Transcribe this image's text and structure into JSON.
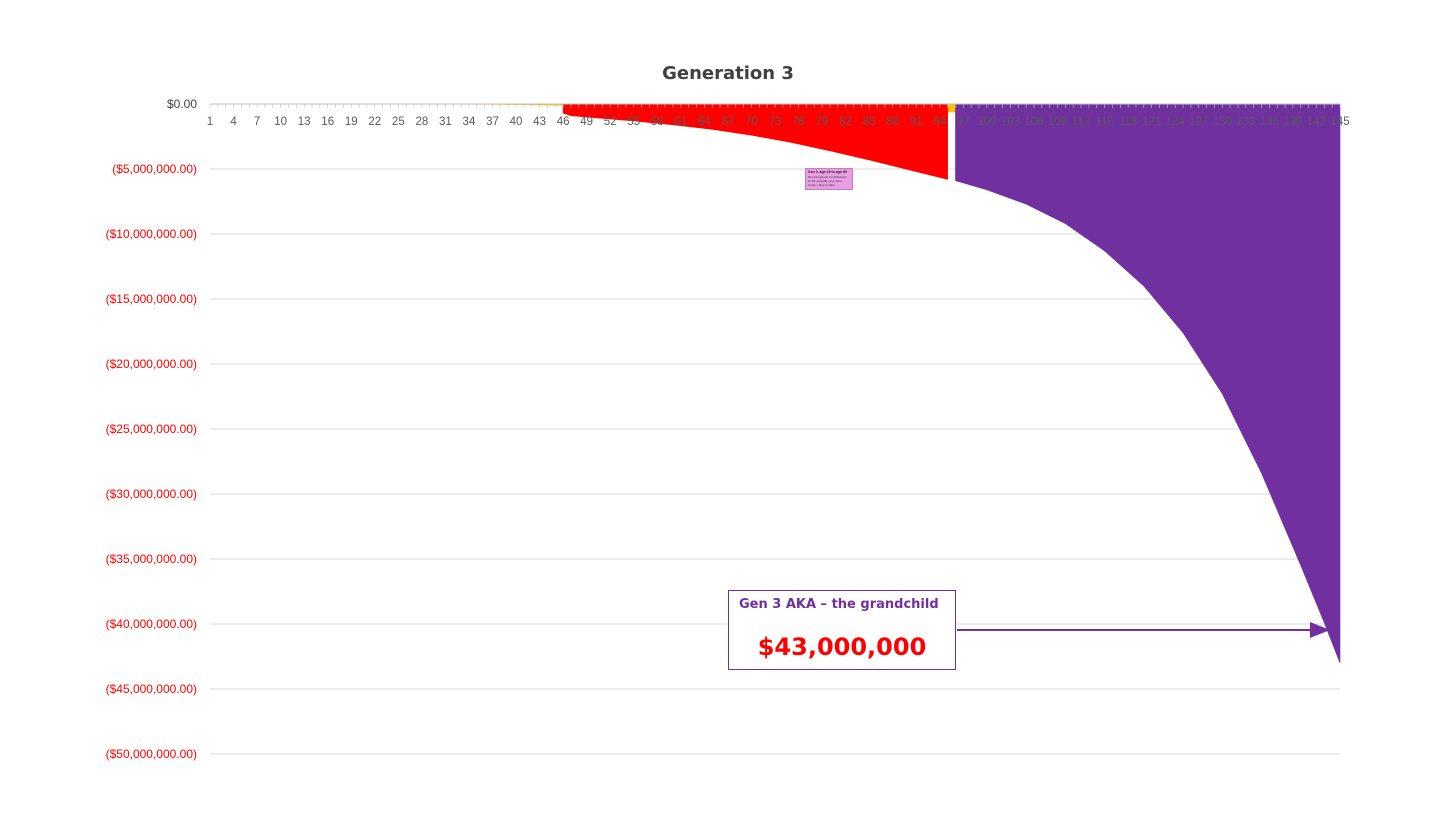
{
  "chart_data": {
    "type": "area",
    "title": "Generation 3",
    "xlabel": "",
    "ylabel": "",
    "x_range": [
      1,
      145
    ],
    "x_tick_labels": [
      "1",
      "4",
      "7",
      "10",
      "13",
      "16",
      "19",
      "22",
      "25",
      "28",
      "31",
      "34",
      "37",
      "40",
      "43",
      "46",
      "49",
      "52",
      "55",
      "58",
      "61",
      "64",
      "67",
      "70",
      "73",
      "76",
      "79",
      "82",
      "85",
      "88",
      "91",
      "94",
      "97",
      "100",
      "103",
      "106",
      "109",
      "112",
      "115",
      "118",
      "121",
      "124",
      "127",
      "130",
      "133",
      "136",
      "139",
      "142",
      "145"
    ],
    "y_tick_labels": [
      "$0.00",
      "($5,000,000.00)",
      "($10,000,000.00)",
      "($15,000,000.00)",
      "($20,000,000.00)",
      "($25,000,000.00)",
      "($30,000,000.00)",
      "($35,000,000.00)",
      "($40,000,000.00)",
      "($45,000,000.00)",
      "($50,000,000.00)"
    ],
    "ylim": [
      -50000000,
      0
    ],
    "grid": true,
    "legend": "none",
    "series": [
      {
        "color": "#FFC000",
        "x": [
          1,
          22,
          30,
          36,
          40,
          44,
          45,
          46,
          55,
          65,
          75,
          85,
          94,
          95,
          96
        ],
        "y": [
          0,
          0,
          -10000,
          -25000,
          -45000,
          -80000,
          -100000,
          -100000,
          -180000,
          -270000,
          -370000,
          -490000,
          -620000,
          -620000,
          -620000
        ]
      },
      {
        "color": "#FF0000",
        "x": [
          46,
          47,
          50,
          55,
          60,
          65,
          70,
          75,
          80,
          85,
          90,
          95
        ],
        "y": [
          -700000,
          -900000,
          -1050000,
          -1300000,
          -1600000,
          -1950000,
          -2400000,
          -2950000,
          -3600000,
          -4300000,
          -5050000,
          -5800000
        ]
      },
      {
        "color": "#7030A0",
        "x": [
          96,
          100,
          105,
          110,
          115,
          120,
          125,
          130,
          135,
          140,
          143,
          145
        ],
        "y": [
          -5900000,
          -6600000,
          -7700000,
          -9200000,
          -11300000,
          -14000000,
          -17600000,
          -22300000,
          -28400000,
          -35500000,
          -39900000,
          -43000000
        ]
      }
    ]
  },
  "callout": {
    "label": "Gen 3 AKA – the grandchild",
    "value": "$43,000,000",
    "border_color": "#7030A0",
    "value_color": "#FF0000"
  },
  "note": {
    "title": "Gen 2, age 18 to age 65",
    "body": "Net Compound Contributions at 4% annually. less Term Costs + Buy-to-ratio"
  },
  "colors": {
    "gridline": "#D9D9D9",
    "negative_label": "#FF0000",
    "zero_label": "#404040",
    "axis_tick": "#BFBFBF",
    "arrow": "#7030A0"
  }
}
